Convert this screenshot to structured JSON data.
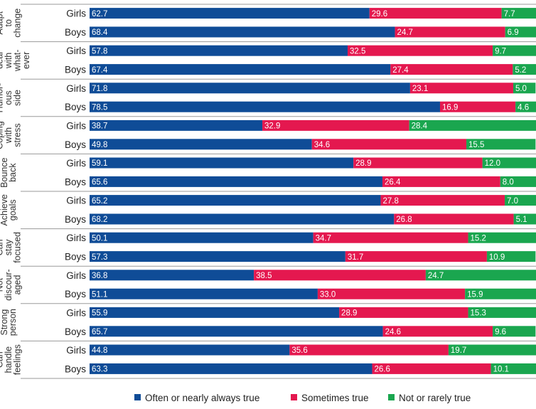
{
  "chart_data": {
    "type": "bar",
    "orientation": "horizontal",
    "stacked": true,
    "xlim": [
      0,
      100
    ],
    "grid": false,
    "legend_position": "bottom",
    "colors": {
      "often": "#0f4c97",
      "sometimes": "#e4184f",
      "rarely": "#1aa64f"
    },
    "series": [
      {
        "key": "often",
        "name": "Often or nearly always true"
      },
      {
        "key": "sometimes",
        "name": "Sometimes true"
      },
      {
        "key": "rarely",
        "name": "Not or rarely true"
      }
    ],
    "groups": [
      {
        "lines": [
          "Adapt",
          "to",
          "change"
        ],
        "rows": [
          {
            "label": "Girls",
            "values": [
              62.7,
              29.6,
              7.7
            ],
            "labels": [
              "62.7",
              "29.6",
              "7.7"
            ]
          },
          {
            "label": "Boys",
            "values": [
              68.4,
              24.7,
              6.9
            ],
            "labels": [
              "68.4",
              "24.7",
              "6.9"
            ]
          }
        ]
      },
      {
        "lines": [
          "Can",
          "deal",
          "with",
          "what-",
          "ever"
        ],
        "rows": [
          {
            "label": "Girls",
            "values": [
              57.8,
              32.5,
              9.7
            ],
            "labels": [
              "57.8",
              "32.5",
              "9.7"
            ]
          },
          {
            "label": "Boys",
            "values": [
              67.4,
              27.4,
              5.2
            ],
            "labels": [
              "67.4",
              "27.4",
              "5.2"
            ]
          }
        ]
      },
      {
        "lines": [
          "Humor-",
          "ous",
          "side"
        ],
        "rows": [
          {
            "label": "Girls",
            "values": [
              71.8,
              23.1,
              5.0
            ],
            "labels": [
              "71.8",
              "23.1",
              "5.0"
            ]
          },
          {
            "label": "Boys",
            "values": [
              78.5,
              16.9,
              4.6
            ],
            "labels": [
              "78.5",
              "16.9",
              "4.6"
            ]
          }
        ]
      },
      {
        "lines": [
          "Coping",
          "with",
          "stress"
        ],
        "rows": [
          {
            "label": "Girls",
            "values": [
              38.7,
              32.9,
              28.4
            ],
            "labels": [
              "38.7",
              "32.9",
              "28.4"
            ]
          },
          {
            "label": "Boys",
            "values": [
              49.8,
              34.6,
              15.5
            ],
            "labels": [
              "49.8",
              "34.6",
              "15.5"
            ]
          }
        ]
      },
      {
        "lines": [
          "Bounce",
          "back"
        ],
        "rows": [
          {
            "label": "Girls",
            "values": [
              59.1,
              28.9,
              12.0
            ],
            "labels": [
              "59.1",
              "28.9",
              "12.0"
            ]
          },
          {
            "label": "Boys",
            "values": [
              65.6,
              26.4,
              8.0
            ],
            "labels": [
              "65.6",
              "26.4",
              "8.0"
            ]
          }
        ]
      },
      {
        "lines": [
          "Achieve",
          "goals"
        ],
        "rows": [
          {
            "label": "Girls",
            "values": [
              65.2,
              27.8,
              7.0
            ],
            "labels": [
              "65.2",
              "27.8",
              "7.0"
            ]
          },
          {
            "label": "Boys",
            "values": [
              68.2,
              26.8,
              5.1
            ],
            "labels": [
              "68.2",
              "26.8",
              "5.1"
            ]
          }
        ]
      },
      {
        "lines": [
          "Can",
          "stay",
          "focused"
        ],
        "rows": [
          {
            "label": "Girls",
            "values": [
              50.1,
              34.7,
              15.2
            ],
            "labels": [
              "50.1",
              "34.7",
              "15.2"
            ]
          },
          {
            "label": "Boys",
            "values": [
              57.3,
              31.7,
              10.9
            ],
            "labels": [
              "57.3",
              "31.7",
              "10.9"
            ]
          }
        ]
      },
      {
        "lines": [
          "Not",
          "discour-",
          "aged"
        ],
        "rows": [
          {
            "label": "Girls",
            "values": [
              36.8,
              38.5,
              24.7
            ],
            "labels": [
              "36.8",
              "38.5",
              "24.7"
            ]
          },
          {
            "label": "Boys",
            "values": [
              51.1,
              33.0,
              15.9
            ],
            "labels": [
              "51.1",
              "33.0",
              "15.9"
            ]
          }
        ]
      },
      {
        "lines": [
          "Strong",
          "person"
        ],
        "rows": [
          {
            "label": "Girls",
            "values": [
              55.9,
              28.9,
              15.3
            ],
            "labels": [
              "55.9",
              "28.9",
              "15.3"
            ]
          },
          {
            "label": "Boys",
            "values": [
              65.7,
              24.6,
              9.6
            ],
            "labels": [
              "65.7",
              "24.6",
              "9.6"
            ]
          }
        ]
      },
      {
        "lines": [
          "Can",
          "handle",
          "feelings"
        ],
        "rows": [
          {
            "label": "Girls",
            "values": [
              44.8,
              35.6,
              19.7
            ],
            "labels": [
              "44.8",
              "35.6",
              "19.7"
            ]
          },
          {
            "label": "Boys",
            "values": [
              63.3,
              26.6,
              10.1
            ],
            "labels": [
              "63.3",
              "26.6",
              "10.1"
            ]
          }
        ]
      }
    ]
  }
}
